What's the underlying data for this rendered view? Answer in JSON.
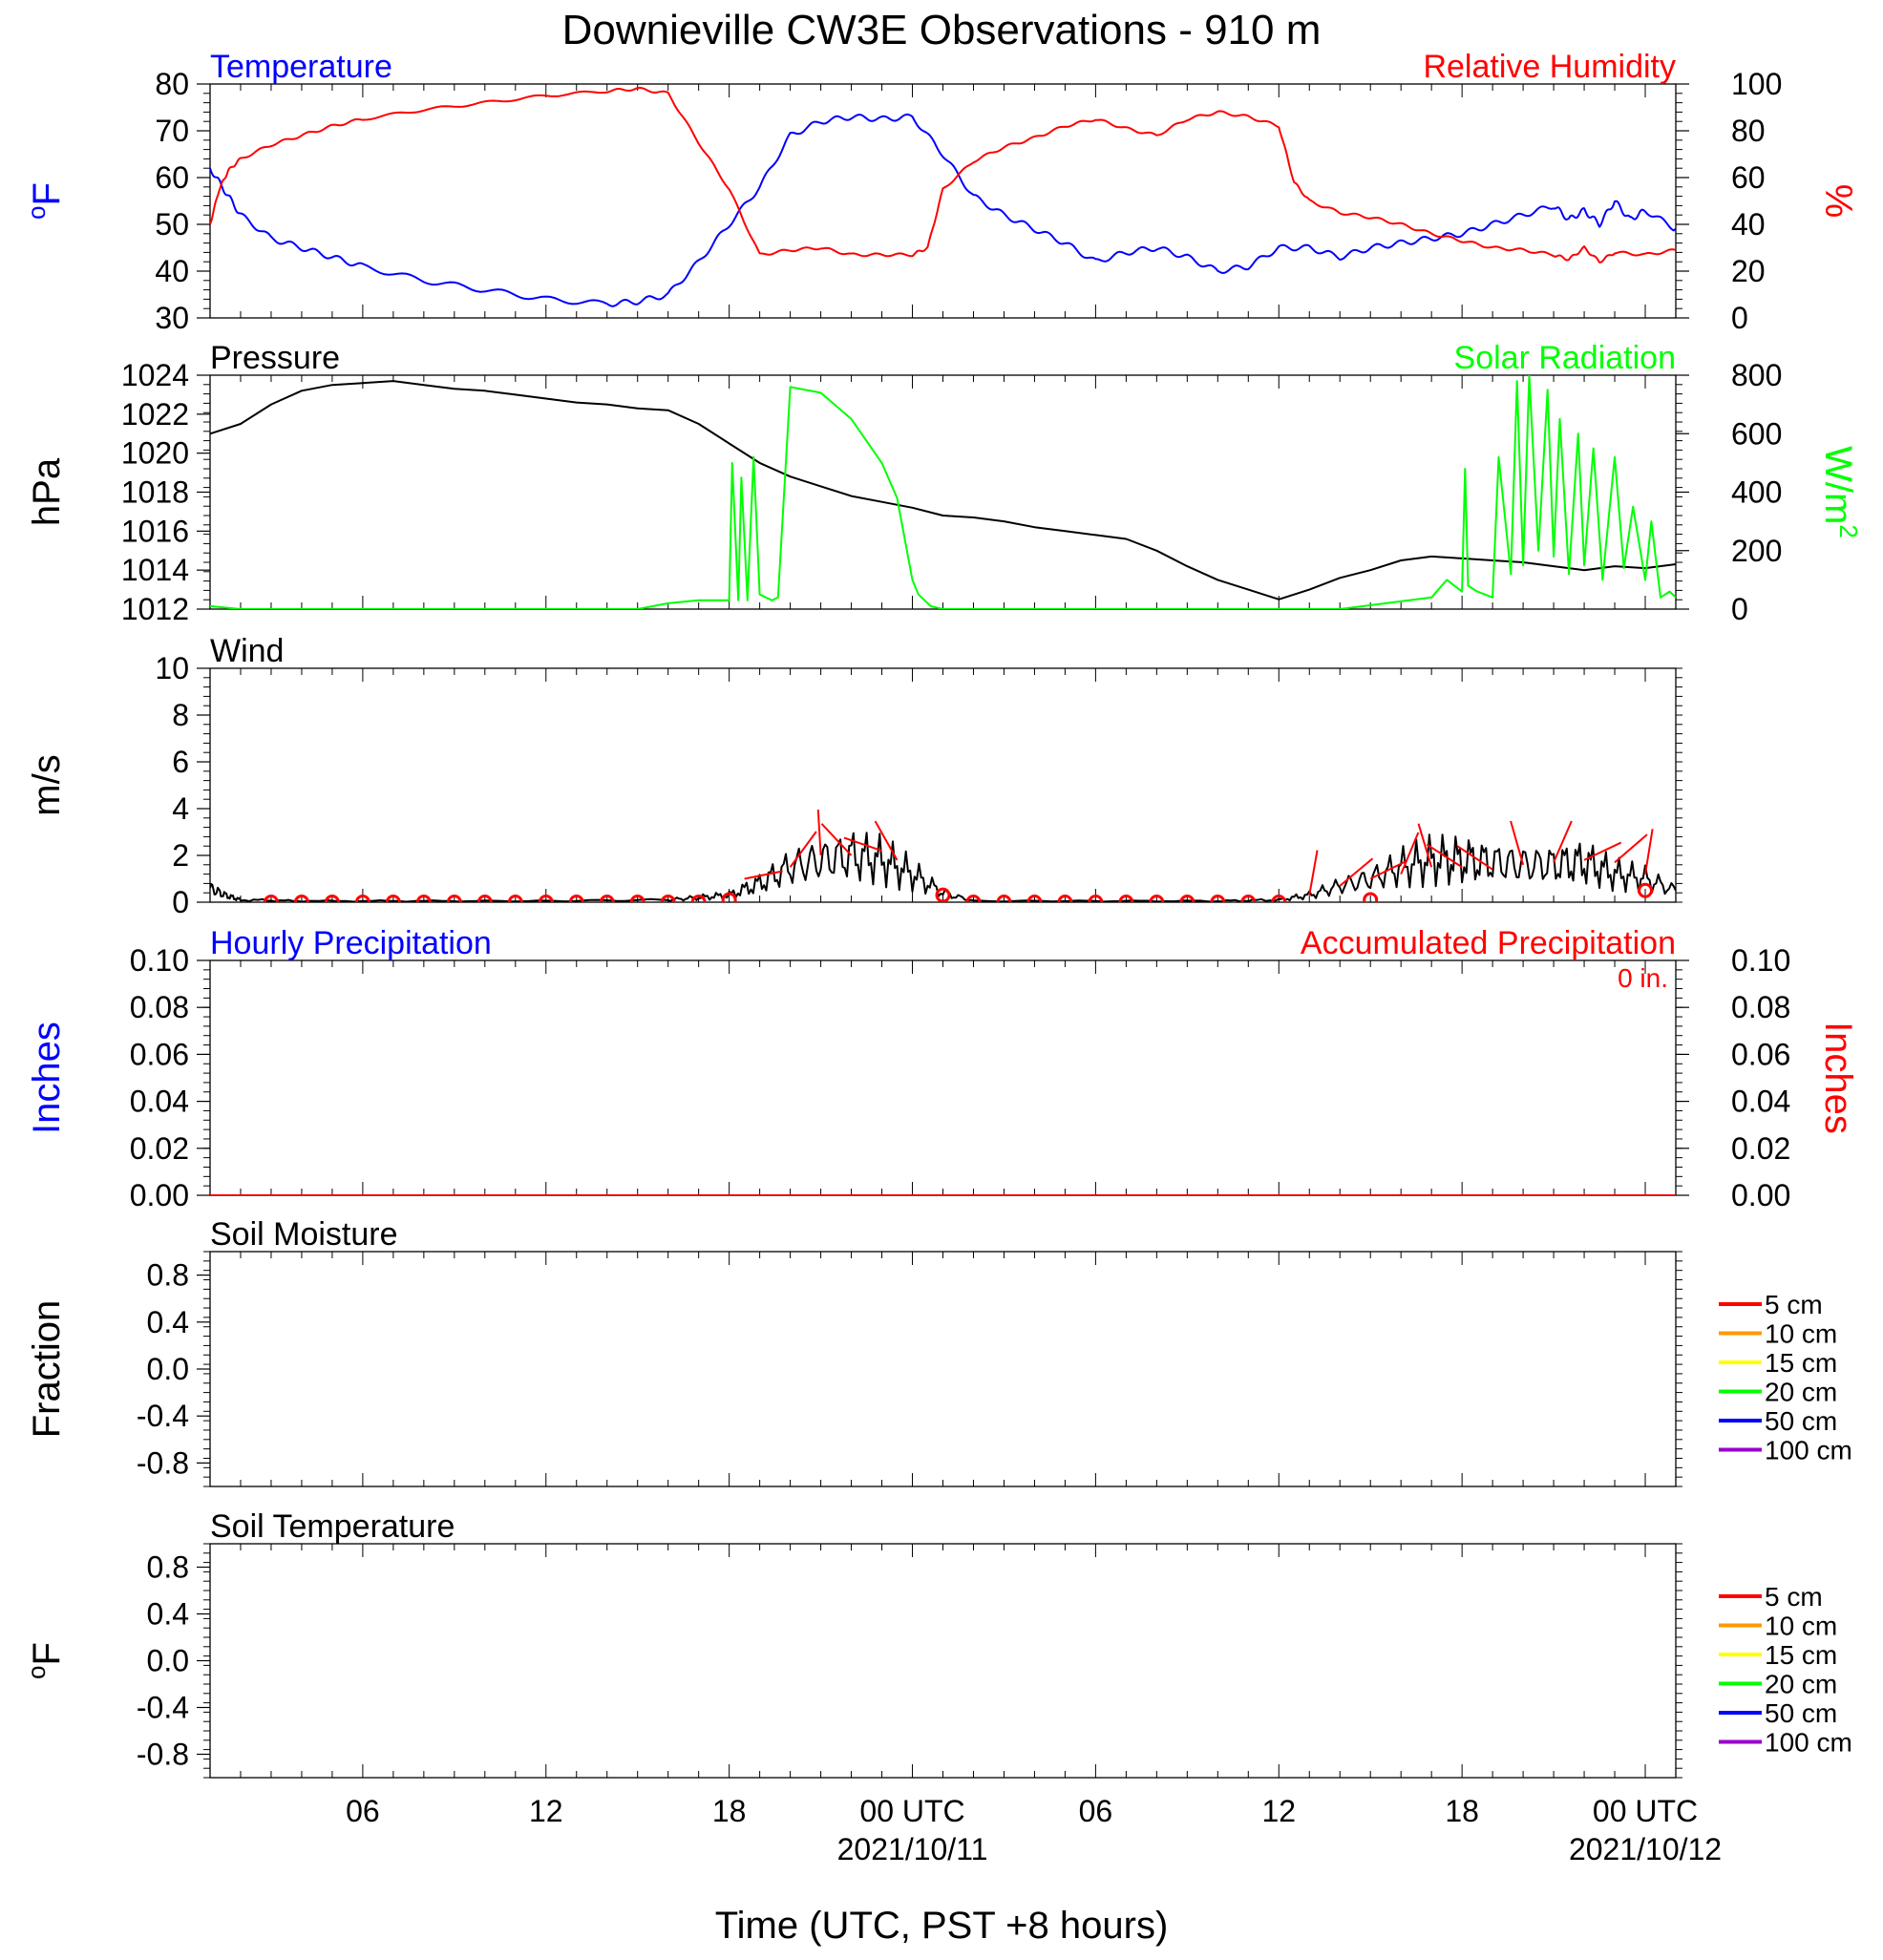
{
  "title": "Downieville CW3E Observations - 910 m",
  "xaxis": {
    "label": "Time (UTC, PST +8 hours)",
    "ticks": [
      "06",
      "12",
      "18",
      "00 UTC",
      "06",
      "12",
      "18",
      "00 UTC"
    ],
    "tick_hours": [
      6,
      12,
      18,
      24,
      30,
      36,
      42,
      48
    ],
    "dates": [
      "2021/10/11",
      "2021/10/12"
    ],
    "date_hours": [
      24,
      48
    ],
    "range_hours": [
      1,
      49
    ]
  },
  "legend_labels": [
    "5 cm",
    "10 cm",
    "15 cm",
    "20 cm",
    "50 cm",
    "100 cm"
  ],
  "legend_colors": [
    "#ff0000",
    "#ff9900",
    "#ffff00",
    "#00ff00",
    "#0000ff",
    "#9900cc"
  ],
  "chart_data": [
    {
      "type": "line",
      "id": "temp_rh",
      "left_title": "Temperature",
      "right_title": "Relative Humidity",
      "left_unit": "oF",
      "right_unit": "%",
      "left_ticks": [
        "30",
        "40",
        "50",
        "60",
        "70",
        "80"
      ],
      "right_ticks": [
        "0",
        "20",
        "40",
        "60",
        "80",
        "100"
      ],
      "left_ylim": [
        30,
        80
      ],
      "right_ylim": [
        0,
        100
      ],
      "series": [
        {
          "name": "Temperature",
          "axis": "left",
          "color": "#0000ff",
          "x": [
            1,
            1.5,
            2,
            3,
            4,
            5,
            6,
            8,
            10,
            12,
            14,
            15,
            16,
            17,
            18,
            19,
            20,
            21,
            22,
            23,
            24,
            25,
            26,
            27,
            28,
            29,
            30,
            31,
            32,
            33,
            34,
            35,
            36,
            37,
            38,
            39,
            40,
            41,
            42,
            43,
            44,
            45,
            45.5,
            46,
            46.5,
            47,
            47.5,
            48,
            49
          ],
          "y": [
            62,
            57,
            52,
            47,
            45,
            43,
            41,
            38,
            36,
            34,
            33,
            33.5,
            35,
            42,
            50,
            58,
            69,
            72,
            73,
            72.5,
            73,
            65,
            56,
            52,
            49,
            46,
            42,
            44,
            45,
            43,
            40,
            41,
            45,
            45,
            43,
            45,
            46,
            47,
            48,
            50,
            52,
            54,
            51,
            53,
            50,
            55,
            51,
            53,
            49
          ]
        },
        {
          "name": "Relative Humidity",
          "axis": "right",
          "color": "#ff0000",
          "x": [
            1,
            1.3,
            1.6,
            2,
            3,
            4,
            5,
            6,
            8,
            10,
            12,
            14,
            15,
            16,
            17,
            18,
            19,
            20,
            21,
            22,
            23,
            24,
            24.5,
            25,
            26,
            27,
            28,
            29,
            30,
            31,
            32,
            33,
            34,
            35,
            36,
            36.5,
            37,
            38,
            39,
            40,
            41,
            42,
            43,
            44,
            45,
            45.5,
            46,
            46.5,
            47,
            48,
            49
          ],
          "y": [
            40,
            55,
            63,
            68,
            74,
            78,
            82,
            85,
            89,
            92,
            95,
            97,
            98,
            96,
            75,
            55,
            27,
            29,
            30,
            27,
            27,
            27,
            30,
            55,
            67,
            73,
            77,
            82,
            85,
            81,
            78,
            85,
            88,
            86,
            82,
            58,
            50,
            45,
            43,
            40,
            36,
            33,
            30,
            29,
            27,
            25,
            30,
            24,
            28,
            27,
            29
          ]
        }
      ]
    },
    {
      "type": "line",
      "id": "press_solar",
      "left_title": "Pressure",
      "right_title": "Solar Radiation",
      "left_unit": "hPa",
      "right_unit": "W/m2",
      "left_ticks": [
        "1012",
        "1014",
        "1016",
        "1018",
        "1020",
        "1022",
        "1024"
      ],
      "right_ticks": [
        "0",
        "200",
        "400",
        "600",
        "800"
      ],
      "left_ylim": [
        1012,
        1024
      ],
      "right_ylim": [
        0,
        800
      ],
      "series": [
        {
          "name": "Pressure",
          "axis": "left",
          "color": "#000000",
          "x": [
            1,
            2,
            3,
            4,
            5,
            6,
            7,
            8,
            9,
            10,
            11,
            12,
            13,
            14,
            15,
            16,
            17,
            18,
            19,
            20,
            21,
            22,
            23,
            24,
            25,
            26,
            27,
            28,
            29,
            30,
            31,
            32,
            33,
            34,
            35,
            36,
            37,
            38,
            39,
            40,
            41,
            42,
            43,
            44,
            45,
            46,
            47,
            48,
            49
          ],
          "y": [
            1021,
            1021.5,
            1022.5,
            1023.2,
            1023.5,
            1023.6,
            1023.7,
            1023.5,
            1023.3,
            1023.2,
            1023,
            1022.8,
            1022.6,
            1022.5,
            1022.3,
            1022.2,
            1021.5,
            1020.5,
            1019.5,
            1018.8,
            1018.3,
            1017.8,
            1017.5,
            1017.2,
            1016.8,
            1016.7,
            1016.5,
            1016.2,
            1016,
            1015.8,
            1015.6,
            1015,
            1014.2,
            1013.5,
            1013,
            1012.5,
            1013,
            1013.6,
            1014,
            1014.5,
            1014.7,
            1014.6,
            1014.5,
            1014.4,
            1014.2,
            1014,
            1014.2,
            1014.1,
            1014.3
          ]
        },
        {
          "name": "Solar Radiation",
          "axis": "right",
          "color": "#00ff00",
          "x": [
            1,
            2,
            12,
            15,
            16,
            17,
            18,
            18.1,
            18.3,
            18.4,
            18.6,
            18.8,
            19,
            19.4,
            19.6,
            20,
            21,
            22,
            23,
            23.5,
            24,
            24.2,
            24.6,
            25,
            26,
            30,
            34,
            38,
            41,
            41.5,
            42,
            42.1,
            42.2,
            42.5,
            43,
            43.2,
            43.6,
            43.8,
            44,
            44.2,
            44.5,
            44.8,
            45,
            45.2,
            45.5,
            45.8,
            46,
            46.3,
            46.6,
            47,
            47.3,
            47.6,
            48,
            48.2,
            48.5,
            48.8,
            49
          ],
          "y": [
            10,
            0,
            0,
            0,
            20,
            30,
            30,
            500,
            30,
            450,
            30,
            520,
            50,
            30,
            40,
            760,
            740,
            650,
            500,
            380,
            100,
            50,
            10,
            0,
            0,
            0,
            0,
            0,
            40,
            100,
            60,
            480,
            80,
            60,
            40,
            520,
            120,
            780,
            150,
            800,
            200,
            750,
            180,
            650,
            120,
            600,
            150,
            550,
            100,
            520,
            140,
            350,
            100,
            300,
            40,
            60,
            40
          ]
        }
      ]
    },
    {
      "type": "line",
      "id": "wind",
      "left_title": "Wind",
      "left_unit": "m/s",
      "left_ticks": [
        "0",
        "2",
        "4",
        "6",
        "8",
        "10"
      ],
      "left_ylim": [
        0,
        10
      ],
      "series": [
        {
          "name": "Wind",
          "axis": "left",
          "color": "#000000",
          "x": [
            1,
            1.5,
            2,
            4,
            8,
            12,
            16,
            17,
            18,
            19,
            20,
            21,
            22,
            23,
            24,
            25,
            26,
            30,
            34,
            36,
            37,
            38,
            39,
            40,
            41,
            42,
            43,
            44,
            45,
            46,
            47,
            48,
            49
          ],
          "y": [
            0.6,
            0.3,
            0.1,
            0.05,
            0.05,
            0.05,
            0.1,
            0.2,
            0.3,
            0.8,
            1.5,
            1.8,
            2,
            1.8,
            1.2,
            0.4,
            0.05,
            0.05,
            0.05,
            0.1,
            0.3,
            0.7,
            1,
            1.5,
            1.8,
            1.8,
            1.7,
            1.6,
            1.6,
            1.7,
            1.2,
            1,
            0.5
          ]
        }
      ],
      "markers": {
        "name": "Wind direction",
        "color": "#ff0000",
        "circle_x": [
          3,
          4,
          5,
          6,
          7,
          8,
          9,
          10,
          11,
          12,
          13,
          14,
          15,
          16,
          17,
          18,
          25,
          26,
          27,
          28,
          29,
          30,
          31,
          32,
          33,
          34,
          35,
          36,
          39,
          48
        ],
        "circle_y": [
          0,
          0,
          0,
          0,
          0,
          0,
          0,
          0,
          0,
          0,
          0,
          0,
          0,
          0,
          0,
          0.1,
          0.3,
          0,
          0,
          0,
          0,
          0,
          0,
          0,
          0,
          0,
          0,
          0,
          0.1,
          0.5
        ],
        "barb_x": [
          18.5,
          20,
          21,
          22,
          23,
          23.5,
          37,
          38,
          39,
          40,
          41,
          42,
          43,
          44,
          45,
          46,
          47,
          48
        ],
        "barb_y": [
          1,
          1.5,
          2,
          2,
          2.2,
          1.8,
          0.3,
          0.7,
          1,
          1.2,
          1.5,
          1.5,
          1.4,
          1.6,
          1.7,
          1.8,
          1.7,
          1.2
        ]
      }
    },
    {
      "type": "line",
      "id": "precip",
      "left_title": "Hourly Precipitation",
      "right_title": "Accumulated Precipitation",
      "annotation": "0 in.",
      "left_unit": "Inches",
      "right_unit": "Inches",
      "left_ticks": [
        "0.00",
        "0.02",
        "0.04",
        "0.06",
        "0.08",
        "0.10"
      ],
      "right_ticks": [
        "0.00",
        "0.02",
        "0.04",
        "0.06",
        "0.08",
        "0.10"
      ],
      "left_ylim": [
        0,
        0.1
      ],
      "right_ylim": [
        0,
        0.1
      ],
      "series": [
        {
          "name": "Accumulated Precipitation",
          "axis": "left",
          "color": "#ff0000",
          "x": [
            1,
            49
          ],
          "y": [
            0,
            0
          ]
        }
      ]
    },
    {
      "type": "line",
      "id": "soil_moist",
      "left_title": "Soil Moisture",
      "left_unit": "Fraction",
      "left_ticks": [
        "-0.8",
        "-0.4",
        "0.0",
        "0.4",
        "0.8"
      ],
      "left_ylim": [
        -1,
        1
      ],
      "series": []
    },
    {
      "type": "line",
      "id": "soil_temp",
      "left_title": "Soil Temperature",
      "left_unit": "oF",
      "left_ticks": [
        "-0.8",
        "-0.4",
        "0.0",
        "0.4",
        "0.8"
      ],
      "left_ylim": [
        -1,
        1
      ],
      "series": []
    }
  ]
}
